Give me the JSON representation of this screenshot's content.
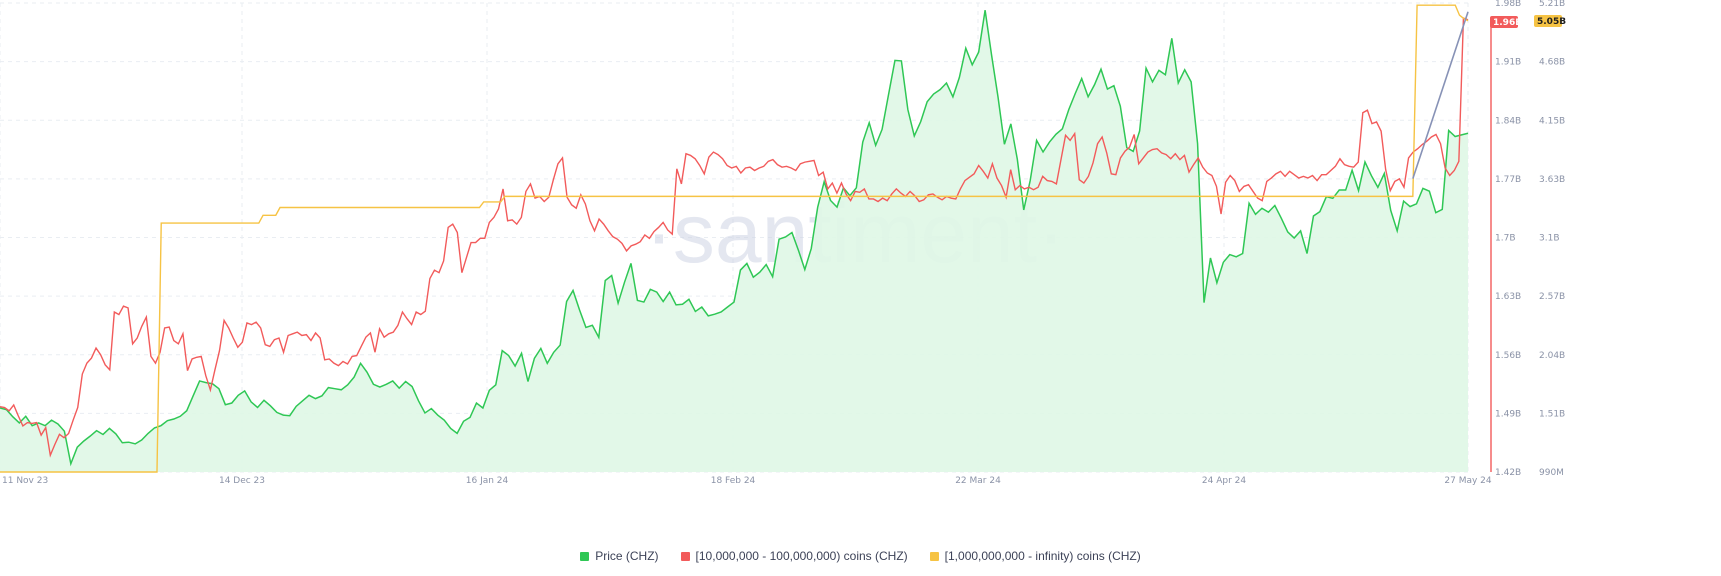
{
  "watermark": "·santiment·",
  "colors": {
    "price": "#2fc755",
    "price_fill": "#dff7e5",
    "mid": "#f25b5b",
    "whales": "#f6c344",
    "trend": "#8792b6",
    "grid": "#e9edf2",
    "tick": "#8b93a7"
  },
  "legend": [
    {
      "key": "price",
      "label": "Price (CHZ)",
      "color": "#2fc755"
    },
    {
      "key": "mid",
      "label": "[10,000,000 - 100,000,000) coins (CHZ)",
      "color": "#f25b5b"
    },
    {
      "key": "whales",
      "label": "[1,000,000,000 - infinity) coins (CHZ)",
      "color": "#f6c344"
    }
  ],
  "badges": {
    "mid": {
      "text": "1.96B",
      "color": "#f25b5b"
    },
    "whales": {
      "text": "5.05B",
      "color": "#f6c344"
    }
  },
  "chart_data": {
    "type": "line",
    "x_ticks": [
      "11 Nov 23",
      "14 Dec 23",
      "16 Jan 24",
      "18 Feb 24",
      "22 Mar 24",
      "24 Apr 24",
      "27 May 24"
    ],
    "axes": {
      "mid_axis": {
        "ticks": [
          "1.42B",
          "1.49B",
          "1.56B",
          "1.63B",
          "1.7B",
          "1.77B",
          "1.84B",
          "1.91B",
          "1.98B"
        ],
        "range": [
          1.42,
          1.98
        ]
      },
      "whales_axis": {
        "ticks": [
          "990M",
          "1.51B",
          "2.04B",
          "2.57B",
          "3.1B",
          "3.63B",
          "4.15B",
          "4.68B",
          "5.21B"
        ],
        "range": [
          0.99,
          5.21
        ]
      }
    },
    "price_scale": {
      "min": 0.0582,
      "max": 0.1432
    },
    "series": [
      {
        "name": "Price (CHZ)",
        "key": "price",
        "style": "area",
        "values": [
          0.0698,
          0.0695,
          0.0682,
          0.0671,
          0.0683,
          0.0666,
          0.0671,
          0.0666,
          0.0676,
          0.0669,
          0.0656,
          0.0597,
          0.0627,
          0.0638,
          0.0647,
          0.0657,
          0.065,
          0.0661,
          0.0651,
          0.0635,
          0.0636,
          0.0633,
          0.064,
          0.0652,
          0.0662,
          0.0666,
          0.0675,
          0.0678,
          0.0683,
          0.0693,
          0.072,
          0.0747,
          0.0744,
          0.0742,
          0.0733,
          0.0704,
          0.0707,
          0.0721,
          0.0729,
          0.0709,
          0.0699,
          0.0712,
          0.0702,
          0.069,
          0.0685,
          0.0684,
          0.0701,
          0.0711,
          0.0721,
          0.0715,
          0.072,
          0.0735,
          0.0733,
          0.0731,
          0.074,
          0.0754,
          0.0779,
          0.0763,
          0.0741,
          0.0736,
          0.0741,
          0.0747,
          0.0734,
          0.0746,
          0.0737,
          0.0711,
          0.0689,
          0.0697,
          0.0685,
          0.0676,
          0.0661,
          0.0652,
          0.0674,
          0.0681,
          0.0707,
          0.0698,
          0.073,
          0.074,
          0.0802,
          0.0793,
          0.0774,
          0.0797,
          0.0746,
          0.0788,
          0.0806,
          0.0779,
          0.0799,
          0.0812,
          0.0891,
          0.0911,
          0.0876,
          0.0844,
          0.0848,
          0.0826,
          0.0929,
          0.0938,
          0.0888,
          0.0926,
          0.096,
          0.0893,
          0.089,
          0.0913,
          0.0908,
          0.0891,
          0.0908,
          0.0885,
          0.0886,
          0.0895,
          0.0873,
          0.0881,
          0.0865,
          0.0868,
          0.0872,
          0.0881,
          0.089,
          0.0948,
          0.096,
          0.0935,
          0.0944,
          0.0958,
          0.0936,
          0.1004,
          0.1008,
          0.1016,
          0.0984,
          0.0949,
          0.0987,
          0.1062,
          0.1108,
          0.1074,
          0.1062,
          0.1097,
          0.1083,
          0.1097,
          0.118,
          0.1215,
          0.1174,
          0.1203,
          0.1266,
          0.1328,
          0.1327,
          0.1239,
          0.1191,
          0.1217,
          0.1253,
          0.1267,
          0.1275,
          0.1287,
          0.1262,
          0.1297,
          0.135,
          0.132,
          0.1343,
          0.1419,
          0.1338,
          0.1262,
          0.1176,
          0.1213,
          0.1149,
          0.1057,
          0.111,
          0.1183,
          0.1162,
          0.118,
          0.1194,
          0.1204,
          0.1239,
          0.1268,
          0.1295,
          0.1262,
          0.1284,
          0.1312,
          0.1276,
          0.1282,
          0.1245,
          0.117,
          0.1163,
          0.12,
          0.1314,
          0.1289,
          0.131,
          0.1302,
          0.1368,
          0.1287,
          0.1311,
          0.1289,
          0.1177,
          0.0889,
          0.097,
          0.0925,
          0.0962,
          0.0976,
          0.0972,
          0.0978,
          0.1069,
          0.1049,
          0.106,
          0.1053,
          0.1065,
          0.1042,
          0.1017,
          0.1006,
          0.1019,
          0.0978,
          0.1046,
          0.1054,
          0.1081,
          0.1078,
          0.1093,
          0.1093,
          0.1129,
          0.1092,
          0.1144,
          0.1119,
          0.1098,
          0.1123,
          0.1056,
          0.1019,
          0.1073,
          0.1063,
          0.1068,
          0.1096,
          0.1091,
          0.1052,
          0.1058,
          0.1201,
          0.119,
          0.1193,
          0.1196
        ]
      },
      {
        "name": "[10,000,000 - 100,000,000) coins (CHZ)",
        "key": "mid",
        "axis": "mid_axis",
        "values": [
          1.498,
          1.497,
          1.493,
          1.5,
          1.487,
          1.475,
          1.479,
          1.478,
          1.479,
          1.464,
          1.473,
          1.44,
          1.453,
          1.465,
          1.461,
          1.466,
          1.482,
          1.497,
          1.537,
          1.55,
          1.556,
          1.568,
          1.56,
          1.548,
          1.542,
          1.611,
          1.608,
          1.618,
          1.616,
          1.573,
          1.58,
          1.594,
          1.605,
          1.558,
          1.55,
          1.563,
          1.592,
          1.593,
          1.577,
          1.573,
          1.585,
          1.541,
          1.555,
          1.557,
          1.558,
          1.535,
          1.518,
          1.542,
          1.565,
          1.601,
          1.592,
          1.58,
          1.569,
          1.575,
          1.598,
          1.596,
          1.599,
          1.592,
          1.572,
          1.57,
          1.578,
          1.58,
          1.563,
          1.583,
          1.585,
          1.587,
          1.583,
          1.584,
          1.577,
          1.586,
          1.58,
          1.554,
          1.555,
          1.55,
          1.547,
          1.552,
          1.549,
          1.558,
          1.559,
          1.57,
          1.581,
          1.586,
          1.563,
          1.591,
          1.581,
          1.585,
          1.587,
          1.595,
          1.611,
          1.603,
          1.596,
          1.611,
          1.608,
          1.612,
          1.651,
          1.661,
          1.658,
          1.672,
          1.712,
          1.716,
          1.706,
          1.658,
          1.676,
          1.694,
          1.694,
          1.699,
          1.699,
          1.718,
          1.724,
          1.734,
          1.758,
          1.72,
          1.721,
          1.716,
          1.724,
          1.755,
          1.764,
          1.747,
          1.749,
          1.743,
          1.748,
          1.769,
          1.788,
          1.795,
          1.748,
          1.739,
          1.735,
          1.751,
          1.74,
          1.72,
          1.708,
          1.722,
          1.716,
          1.708,
          1.701,
          1.698,
          1.693,
          1.684,
          1.69,
          1.692,
          1.695,
          1.703,
          1.699,
          1.707,
          1.712,
          1.718,
          1.709,
          1.704,
          1.782,
          1.764,
          1.8,
          1.798,
          1.794,
          1.786,
          1.776,
          1.796,
          1.802,
          1.799,
          1.794,
          1.786,
          1.783,
          1.785,
          1.777,
          1.783,
          1.784,
          1.78,
          1.783,
          1.785,
          1.791,
          1.793,
          1.787,
          1.784,
          1.785,
          1.783,
          1.78,
          1.788,
          1.79,
          1.791,
          1.792,
          1.774,
          1.778,
          1.758,
          1.765,
          1.753,
          1.765,
          1.752,
          1.744,
          1.755,
          1.754,
          1.758,
          1.746,
          1.746,
          1.743,
          1.747,
          1.744,
          1.752,
          1.758,
          1.753,
          1.749,
          1.755,
          1.75,
          1.743,
          1.745,
          1.751,
          1.752,
          1.748,
          1.745,
          1.749,
          1.747,
          1.746,
          1.758,
          1.768,
          1.772,
          1.776,
          1.786,
          1.779,
          1.771,
          1.788,
          1.771,
          1.762,
          1.748,
          1.781,
          1.757,
          1.762,
          1.758,
          1.76,
          1.757,
          1.76,
          1.773,
          1.768,
          1.767,
          1.764,
          1.793,
          1.822,
          1.816,
          1.824,
          1.769,
          1.765,
          1.773,
          1.789,
          1.812,
          1.82,
          1.801,
          1.776,
          1.775,
          1.795,
          1.803,
          1.808,
          1.823,
          1.788,
          1.795,
          1.802,
          1.805,
          1.806,
          1.801,
          1.799,
          1.794,
          1.8,
          1.793,
          1.798,
          1.778,
          1.787,
          1.795,
          1.784,
          1.777,
          1.774,
          1.761,
          1.728,
          1.766,
          1.774,
          1.768,
          1.755,
          1.761,
          1.763,
          1.755,
          1.747,
          1.744,
          1.767,
          1.771,
          1.776,
          1.779,
          1.773,
          1.779,
          1.775,
          1.771,
          1.773,
          1.771,
          1.774,
          1.768,
          1.775,
          1.775,
          1.78,
          1.785,
          1.794,
          1.787,
          1.785,
          1.784,
          1.79,
          1.849,
          1.852,
          1.836,
          1.838,
          1.827,
          1.781,
          1.756,
          1.767,
          1.77,
          1.76,
          1.795,
          1.802,
          1.806,
          1.811,
          1.815,
          1.82,
          1.823,
          1.812,
          1.783,
          1.774,
          1.78,
          1.791,
          1.962,
          1.96
        ]
      },
      {
        "name": "[1,000,000,000 - infinity) coins (CHZ)",
        "key": "whales",
        "axis": "whales_axis",
        "values": [
          0.99,
          0.99,
          0.99,
          0.99,
          0.99,
          0.99,
          0.99,
          0.99,
          0.99,
          0.99,
          0.99,
          0.99,
          0.99,
          0.99,
          0.99,
          0.99,
          0.99,
          0.99,
          0.99,
          0.99,
          0.99,
          0.99,
          0.99,
          0.99,
          0.99,
          0.99,
          0.99,
          0.99,
          0.99,
          0.99,
          0.99,
          0.99,
          0.99,
          0.99,
          0.99,
          0.99,
          0.99,
          0.99,
          3.23,
          3.23,
          3.23,
          3.23,
          3.23,
          3.23,
          3.23,
          3.23,
          3.23,
          3.23,
          3.23,
          3.23,
          3.23,
          3.23,
          3.23,
          3.23,
          3.23,
          3.23,
          3.23,
          3.23,
          3.23,
          3.23,
          3.23,
          3.23,
          3.3,
          3.3,
          3.3,
          3.3,
          3.37,
          3.37,
          3.37,
          3.37,
          3.37,
          3.37,
          3.37,
          3.37,
          3.37,
          3.37,
          3.37,
          3.37,
          3.37,
          3.37,
          3.37,
          3.37,
          3.37,
          3.37,
          3.37,
          3.37,
          3.37,
          3.37,
          3.37,
          3.37,
          3.37,
          3.37,
          3.37,
          3.37,
          3.37,
          3.37,
          3.37,
          3.37,
          3.37,
          3.37,
          3.37,
          3.37,
          3.37,
          3.37,
          3.37,
          3.37,
          3.37,
          3.37,
          3.37,
          3.37,
          3.37,
          3.37,
          3.37,
          3.37,
          3.42,
          3.42,
          3.42,
          3.42,
          3.42,
          3.47,
          3.47,
          3.47,
          3.47,
          3.47,
          3.47,
          3.47,
          3.47,
          3.47,
          3.47,
          3.47,
          3.47,
          3.47,
          3.47,
          3.47,
          3.47,
          3.47,
          3.47,
          3.47,
          3.47,
          3.47,
          3.47,
          3.47,
          3.47,
          3.47,
          3.47,
          3.47,
          3.47,
          3.47,
          3.47,
          3.47,
          3.47,
          3.47,
          3.47,
          3.47,
          3.47,
          3.47,
          3.47,
          3.47,
          3.47,
          3.47,
          3.47,
          3.47,
          3.47,
          3.47,
          3.47,
          3.47,
          3.47,
          3.47,
          3.47,
          3.47,
          3.47,
          3.47,
          3.47,
          3.47,
          3.47,
          3.47,
          3.47,
          3.47,
          3.47,
          3.47,
          3.47,
          3.47,
          3.47,
          3.47,
          3.47,
          3.47,
          3.47,
          3.47,
          3.47,
          3.47,
          3.47,
          3.47,
          3.47,
          3.47,
          3.47,
          3.47,
          3.47,
          3.47,
          3.47,
          3.47,
          3.47,
          3.47,
          3.47,
          3.47,
          3.47,
          3.47,
          3.47,
          3.47,
          3.47,
          3.47,
          3.47,
          3.47,
          3.47,
          3.47,
          3.47,
          3.47,
          3.47,
          3.47,
          3.47,
          3.47,
          3.47,
          3.47,
          3.47,
          3.47,
          3.47,
          3.47,
          3.47,
          3.47,
          3.47,
          3.47,
          3.47,
          3.47,
          3.47,
          3.47,
          3.47,
          3.47,
          3.47,
          3.47,
          3.47,
          3.47,
          3.47,
          3.47,
          3.47,
          3.47,
          3.47,
          3.47,
          3.47,
          3.47,
          3.47,
          3.47,
          3.47,
          3.47,
          3.47,
          3.47,
          3.47,
          3.47,
          3.47,
          3.47,
          3.47,
          3.47,
          3.47,
          3.47,
          3.47,
          3.47,
          3.47,
          3.47,
          3.47,
          3.47,
          3.47,
          3.47,
          3.47,
          3.47,
          3.47,
          3.47,
          3.47,
          3.47,
          3.47,
          3.47,
          3.47,
          3.47,
          3.47,
          3.47,
          3.47,
          3.47,
          3.47,
          3.47,
          3.47,
          3.47,
          3.47,
          3.47,
          3.47,
          3.47,
          3.47,
          3.47,
          3.47,
          3.47,
          3.47,
          3.47,
          3.47,
          3.47,
          3.47,
          3.47,
          3.47,
          3.47,
          3.47,
          3.47,
          3.47,
          3.47,
          3.47,
          3.47,
          3.47,
          3.47,
          3.47,
          3.47,
          3.47,
          3.47,
          3.47,
          3.47,
          3.47,
          3.47,
          3.47,
          3.47,
          3.47,
          3.47,
          3.47,
          3.47,
          3.47,
          3.47,
          3.47,
          3.47,
          3.47,
          3.47,
          3.47,
          3.47,
          5.19,
          5.19,
          5.19,
          5.19,
          5.19,
          5.19,
          5.19,
          5.19,
          5.19,
          5.19,
          5.1,
          5.07,
          5.05
        ]
      }
    ],
    "trend_line": {
      "key": "trend",
      "from_value": 3.63,
      "to_value": 5.13,
      "axis": "whales_axis"
    },
    "grid": true,
    "legend_position": "bottom-center"
  }
}
